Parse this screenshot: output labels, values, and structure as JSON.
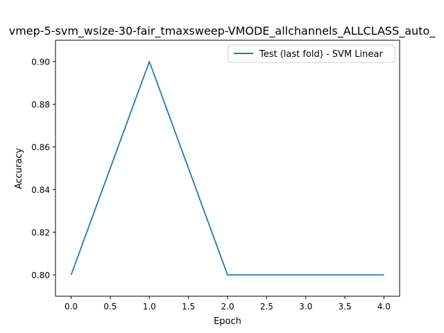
{
  "chart_data": {
    "type": "line",
    "title": "vmep-5-svm_wsize-30-fair_tmaxsweep-VMODE_allchannels_ALLCLASS_auto_",
    "xlabel": "Epoch",
    "ylabel": "Accuracy",
    "xlim": [
      -0.2,
      4.2
    ],
    "ylim": [
      0.79,
      0.91
    ],
    "xticks": [
      0.0,
      0.5,
      1.0,
      1.5,
      2.0,
      2.5,
      3.0,
      3.5,
      4.0
    ],
    "xtick_labels": [
      "0.0",
      "0.5",
      "1.0",
      "1.5",
      "2.0",
      "2.5",
      "3.0",
      "3.5",
      "4.0"
    ],
    "yticks": [
      0.8,
      0.82,
      0.84,
      0.86,
      0.88,
      0.9
    ],
    "ytick_labels": [
      "0.80",
      "0.82",
      "0.84",
      "0.86",
      "0.88",
      "0.90"
    ],
    "grid": false,
    "legend_position": "top-right",
    "series": [
      {
        "name": "Test (last fold) - SVM Linear",
        "color": "#1f77b4",
        "x": [
          0,
          1,
          2,
          3,
          4
        ],
        "y": [
          0.8,
          0.9,
          0.8,
          0.8,
          0.8
        ]
      }
    ]
  }
}
